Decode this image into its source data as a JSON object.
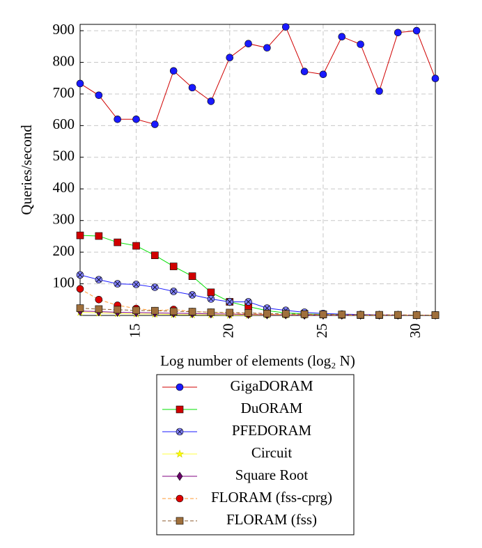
{
  "chart_data": {
    "type": "line",
    "xlabel": "Log number of elements (log₂ N)",
    "ylabel": "Queries/second",
    "x": [
      12,
      13,
      14,
      15,
      16,
      17,
      18,
      19,
      20,
      21,
      22,
      23,
      24,
      25,
      26,
      27,
      28,
      29,
      30,
      31
    ],
    "xlim": [
      12,
      31
    ],
    "xticks": [
      15,
      20,
      25,
      30
    ],
    "ylim": [
      0,
      920
    ],
    "yticks": [
      100,
      200,
      300,
      400,
      500,
      600,
      700,
      800,
      900
    ],
    "grid": true,
    "series": [
      {
        "name": "GigaDORAM",
        "color": "#d00000",
        "marker_color": "#1a1aff",
        "marker": "circle",
        "dash": false,
        "values": [
          733,
          696,
          620,
          620,
          604,
          773,
          720,
          677,
          815,
          859,
          846,
          912,
          771,
          762,
          881,
          857,
          709,
          894,
          900,
          749
        ]
      },
      {
        "name": "DuORAM",
        "color": "#00e000",
        "marker_color": "#d00000",
        "marker": "square",
        "dash": false,
        "values": [
          253,
          251,
          231,
          220,
          190,
          155,
          124,
          73,
          43,
          28,
          15,
          8,
          5,
          3,
          2,
          1,
          1,
          1,
          1,
          1
        ]
      },
      {
        "name": "PFEDORAM",
        "color": "#1a1aff",
        "marker_color": "#8080ff",
        "marker": "otimes",
        "dash": false,
        "values": [
          128,
          113,
          100,
          98,
          89,
          76,
          65,
          52,
          43,
          43,
          23,
          16,
          10,
          6,
          4,
          3,
          2,
          1,
          1,
          1
        ]
      },
      {
        "name": "Circuit",
        "color": "#ffff40",
        "marker_color": "#ffff00",
        "marker": "star",
        "dash": false,
        "values": [
          10,
          8,
          6,
          5,
          4,
          3,
          2,
          2,
          1,
          1,
          1,
          1,
          1,
          1,
          1,
          1,
          1,
          1,
          1,
          1
        ]
      },
      {
        "name": "Square Root",
        "color": "#800080",
        "marker_color": "#6a006a",
        "marker": "diamond",
        "dash": false,
        "values": [
          14,
          12,
          10,
          9,
          8,
          7,
          6,
          5,
          4,
          3,
          2,
          2,
          1,
          1,
          1,
          1,
          1,
          1,
          1,
          1
        ]
      },
      {
        "name": "FLORAM (fss-cprg)",
        "color": "#ff9a30",
        "marker_color": "#e00000",
        "marker": "circle",
        "dash": true,
        "values": [
          84,
          50,
          32,
          22,
          15,
          19,
          12,
          10,
          8,
          5,
          4,
          3,
          2,
          2,
          1,
          1,
          1,
          1,
          1,
          1
        ]
      },
      {
        "name": "FLORAM (fss)",
        "color": "#8b5a2b",
        "marker_color": "#a0703c",
        "marker": "square",
        "dash": true,
        "values": [
          23,
          20,
          18,
          16,
          15,
          13,
          12,
          10,
          9,
          8,
          6,
          5,
          4,
          3,
          3,
          2,
          2,
          2,
          1,
          1
        ]
      }
    ]
  }
}
